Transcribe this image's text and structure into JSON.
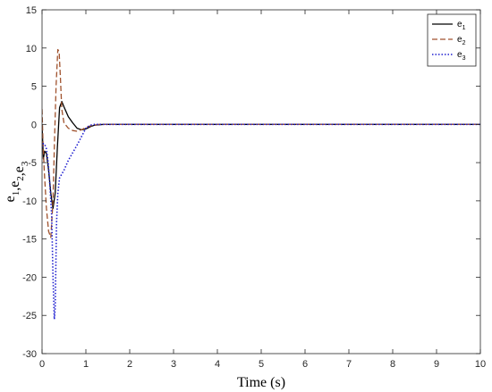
{
  "chart_data": {
    "type": "line",
    "title": "",
    "xlabel": "Time (s)",
    "ylabel_parts": [
      {
        "text": "e",
        "sub": "1"
      },
      {
        "text": ",e",
        "sub": "2"
      },
      {
        "text": ",e",
        "sub": "3"
      }
    ],
    "xlim": [
      0,
      10
    ],
    "ylim": [
      -30,
      15
    ],
    "x_ticks": [
      0,
      1,
      2,
      3,
      4,
      5,
      6,
      7,
      8,
      9,
      10
    ],
    "y_ticks": [
      -30,
      -25,
      -20,
      -15,
      -10,
      -5,
      0,
      5,
      10,
      15
    ],
    "grid": false,
    "legend_position": "top-right",
    "series": [
      {
        "name": "e",
        "sub": "1",
        "color": "#000000",
        "style": "solid",
        "x": [
          0,
          0.03,
          0.06,
          0.1,
          0.15,
          0.2,
          0.25,
          0.3,
          0.35,
          0.4,
          0.45,
          0.5,
          0.6,
          0.7,
          0.8,
          0.9,
          1.0,
          1.1,
          1.2,
          1.4,
          1.6,
          2,
          3,
          4,
          5,
          6,
          7,
          8,
          9,
          10
        ],
        "y": [
          0,
          -4.5,
          -3.5,
          -3.8,
          -6,
          -9,
          -11,
          -9,
          -3,
          2.2,
          3,
          2.3,
          1,
          0.2,
          -0.5,
          -0.7,
          -0.6,
          -0.3,
          -0.1,
          0,
          0,
          0,
          0,
          0,
          0,
          0,
          0,
          0,
          0,
          0
        ]
      },
      {
        "name": "e",
        "sub": "2",
        "color": "#a0522d",
        "style": "dashed",
        "x": [
          0,
          0.02,
          0.05,
          0.1,
          0.15,
          0.2,
          0.25,
          0.28,
          0.32,
          0.36,
          0.39,
          0.42,
          0.45,
          0.5,
          0.6,
          0.7,
          0.8,
          0.9,
          1.0,
          1.1,
          1.3,
          1.6,
          2,
          3,
          4,
          5,
          6,
          7,
          8,
          9,
          10
        ],
        "y": [
          2,
          -2,
          -6,
          -11,
          -14,
          -14.8,
          -10,
          -3,
          5,
          9.8,
          9.5,
          6,
          2,
          0.2,
          -0.5,
          -0.8,
          -0.9,
          -0.7,
          -0.4,
          -0.2,
          0,
          0,
          0,
          0,
          0,
          0,
          0,
          0,
          0,
          0,
          0
        ]
      },
      {
        "name": "e",
        "sub": "3",
        "color": "#1f1fd0",
        "style": "dotted",
        "x": [
          0,
          0.03,
          0.06,
          0.1,
          0.14,
          0.18,
          0.22,
          0.25,
          0.28,
          0.3,
          0.33,
          0.36,
          0.4,
          0.45,
          0.5,
          0.6,
          0.7,
          0.8,
          0.9,
          1.0,
          1.1,
          1.2,
          1.4,
          1.6,
          2,
          3,
          4,
          5,
          6,
          7,
          8,
          9,
          10
        ],
        "y": [
          -3,
          -2.5,
          -2.6,
          -3.2,
          -5,
          -8,
          -12,
          -20,
          -25.5,
          -24,
          -13,
          -9,
          -7,
          -6.5,
          -6,
          -4.7,
          -3.7,
          -2.7,
          -1.6,
          -0.5,
          -0.1,
          0,
          0,
          0,
          0,
          0,
          0,
          0,
          0,
          0,
          0,
          0,
          0
        ]
      }
    ]
  }
}
